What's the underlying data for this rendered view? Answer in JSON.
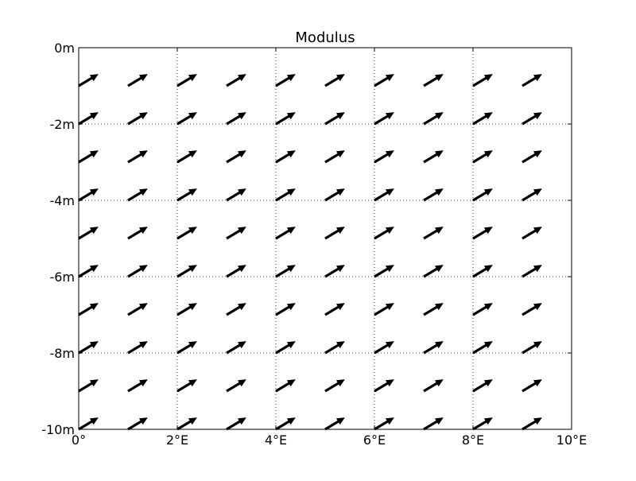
{
  "chart_data": {
    "type": "quiver",
    "title": "Modulus",
    "xlabel": "",
    "ylabel": "",
    "xlim": [
      0,
      10
    ],
    "ylim": [
      -10,
      0
    ],
    "grid": true,
    "grid_style": "dotted",
    "x_ticks": [
      {
        "value": 0,
        "label": "0°"
      },
      {
        "value": 2,
        "label": "2°E"
      },
      {
        "value": 4,
        "label": "4°E"
      },
      {
        "value": 6,
        "label": "6°E"
      },
      {
        "value": 8,
        "label": "8°E"
      },
      {
        "value": 10,
        "label": "10°E"
      }
    ],
    "y_ticks": [
      {
        "value": 0,
        "label": "0m"
      },
      {
        "value": -2,
        "label": "-2m"
      },
      {
        "value": -4,
        "label": "-4m"
      },
      {
        "value": -6,
        "label": "-6m"
      },
      {
        "value": -8,
        "label": "-8m"
      },
      {
        "value": -10,
        "label": "-10m"
      }
    ],
    "vectors": {
      "x": [
        0,
        1,
        2,
        3,
        4,
        5,
        6,
        7,
        8,
        9
      ],
      "y": [
        -1,
        -2,
        -3,
        -4,
        -5,
        -6,
        -7,
        -8,
        -9,
        -10
      ],
      "u": 1,
      "v": 0.6
    },
    "arrow_color": "#000000",
    "background": "#ffffff"
  }
}
